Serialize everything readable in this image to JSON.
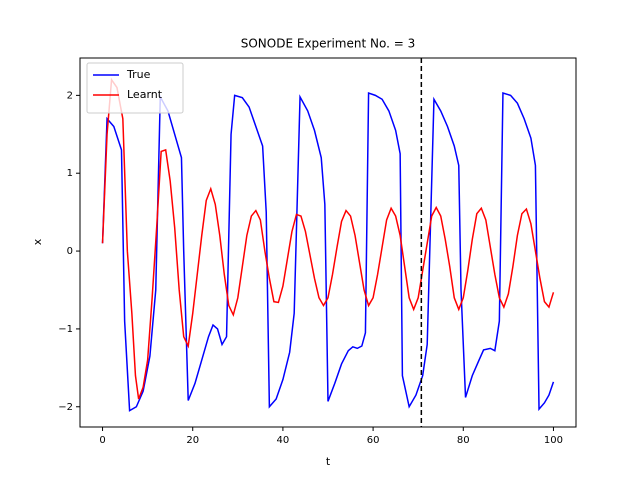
{
  "chart_data": {
    "type": "line",
    "title": "SONODE Experiment No. = 3",
    "xlabel": "t",
    "ylabel": "x",
    "xlim": [
      -5,
      105
    ],
    "ylim": [
      -2.26,
      2.48
    ],
    "xticks": [
      0,
      20,
      40,
      60,
      80,
      100
    ],
    "yticks": [
      {
        "value": -2,
        "label": "−2"
      },
      {
        "value": -1,
        "label": "−1"
      },
      0,
      1,
      2
    ],
    "legend": "upper left",
    "grid": false,
    "vline": {
      "x": 70.7,
      "color": "#000000",
      "style": "dashed"
    },
    "series": [
      {
        "name": "True",
        "color": "#0000ff",
        "x": [
          0,
          1,
          2.5,
          4.2,
          4.9,
          6,
          7.5,
          9,
          10.5,
          11.8,
          12.8,
          14.5,
          16,
          17.5,
          18,
          19,
          20.5,
          22,
          23.5,
          24.5,
          25.5,
          26.5,
          27.5,
          28.5,
          29.3,
          31,
          32.5,
          34,
          35.5,
          36.3,
          37,
          38.5,
          40,
          41.5,
          42.5,
          43.8,
          45.5,
          47,
          48.5,
          49.3,
          50,
          51.5,
          53,
          54.5,
          55.5,
          56.5,
          57.5,
          58.3,
          59,
          60.5,
          62,
          63.5,
          65,
          66,
          66.5,
          68,
          69.5,
          71,
          72,
          73.5,
          75,
          76.5,
          78,
          79,
          79.5,
          80.5,
          82,
          83.5,
          84.5,
          86,
          87,
          88,
          88.8,
          90.5,
          92,
          93.5,
          95,
          96,
          96.8,
          98,
          99,
          100
        ],
        "values": [
          0.1,
          1.7,
          1.6,
          1.3,
          -0.9,
          -2.05,
          -2.0,
          -1.8,
          -1.35,
          -0.5,
          1.98,
          1.8,
          1.5,
          1.2,
          0,
          -1.92,
          -1.7,
          -1.4,
          -1.1,
          -0.95,
          -1.0,
          -1.2,
          -1.1,
          1.5,
          2.0,
          1.97,
          1.85,
          1.6,
          1.35,
          0.5,
          -2.0,
          -1.9,
          -1.65,
          -1.3,
          -0.8,
          1.98,
          1.8,
          1.55,
          1.2,
          0.6,
          -1.93,
          -1.7,
          -1.45,
          -1.28,
          -1.23,
          -1.25,
          -1.22,
          -1.05,
          2.03,
          2.0,
          1.95,
          1.8,
          1.55,
          1.25,
          -1.6,
          -2.0,
          -1.85,
          -1.6,
          -1.2,
          1.95,
          1.8,
          1.6,
          1.35,
          1.1,
          -0.5,
          -1.88,
          -1.6,
          -1.4,
          -1.27,
          -1.25,
          -1.28,
          -0.9,
          2.03,
          2.0,
          1.9,
          1.7,
          1.45,
          1.1,
          -2.03,
          -1.95,
          -1.85,
          -1.68
        ]
      },
      {
        "name": "Learnt",
        "color": "#ff0000",
        "x": [
          0,
          1,
          2,
          3.2,
          4.5,
          5.5,
          6.5,
          7.3,
          8,
          9,
          10,
          11,
          12,
          13,
          14,
          15,
          16,
          17,
          18,
          19,
          20,
          21,
          22,
          23,
          24,
          25,
          26,
          27,
          28,
          29,
          30,
          31,
          32,
          33,
          34,
          35,
          36,
          37,
          38,
          39,
          40,
          41,
          42,
          43,
          44,
          45,
          46,
          47,
          48,
          49,
          50,
          51,
          52,
          53,
          54,
          55,
          56,
          57,
          58,
          59,
          60,
          61,
          62,
          63,
          64,
          65,
          66,
          67,
          68,
          69,
          70,
          71,
          72,
          73,
          74,
          75,
          76,
          77,
          78,
          79,
          80,
          81,
          82,
          83,
          84,
          85,
          86,
          87,
          88,
          89,
          90,
          91,
          92,
          93,
          94,
          95,
          96,
          97,
          98,
          99,
          100
        ],
        "values": [
          0.1,
          1.5,
          2.2,
          2.1,
          1.7,
          0,
          -0.8,
          -1.6,
          -1.9,
          -1.75,
          -1.4,
          -0.6,
          0.3,
          1.28,
          1.3,
          0.9,
          0.3,
          -0.5,
          -1.1,
          -1.22,
          -0.8,
          -0.3,
          0.2,
          0.65,
          0.8,
          0.6,
          0.2,
          -0.3,
          -0.7,
          -0.82,
          -0.6,
          -0.2,
          0.2,
          0.45,
          0.52,
          0.4,
          0.0,
          -0.35,
          -0.65,
          -0.66,
          -0.45,
          -0.1,
          0.25,
          0.47,
          0.45,
          0.25,
          -0.05,
          -0.35,
          -0.6,
          -0.7,
          -0.6,
          -0.3,
          0.05,
          0.38,
          0.52,
          0.45,
          0.2,
          -0.15,
          -0.5,
          -0.7,
          -0.6,
          -0.3,
          0.05,
          0.4,
          0.55,
          0.45,
          0.2,
          -0.2,
          -0.6,
          -0.75,
          -0.6,
          -0.25,
          0.1,
          0.45,
          0.56,
          0.45,
          0.15,
          -0.2,
          -0.6,
          -0.75,
          -0.6,
          -0.25,
          0.15,
          0.48,
          0.55,
          0.4,
          0.05,
          -0.3,
          -0.6,
          -0.72,
          -0.55,
          -0.2,
          0.2,
          0.48,
          0.54,
          0.35,
          0.0,
          -0.35,
          -0.65,
          -0.72,
          -0.53
        ]
      }
    ]
  }
}
